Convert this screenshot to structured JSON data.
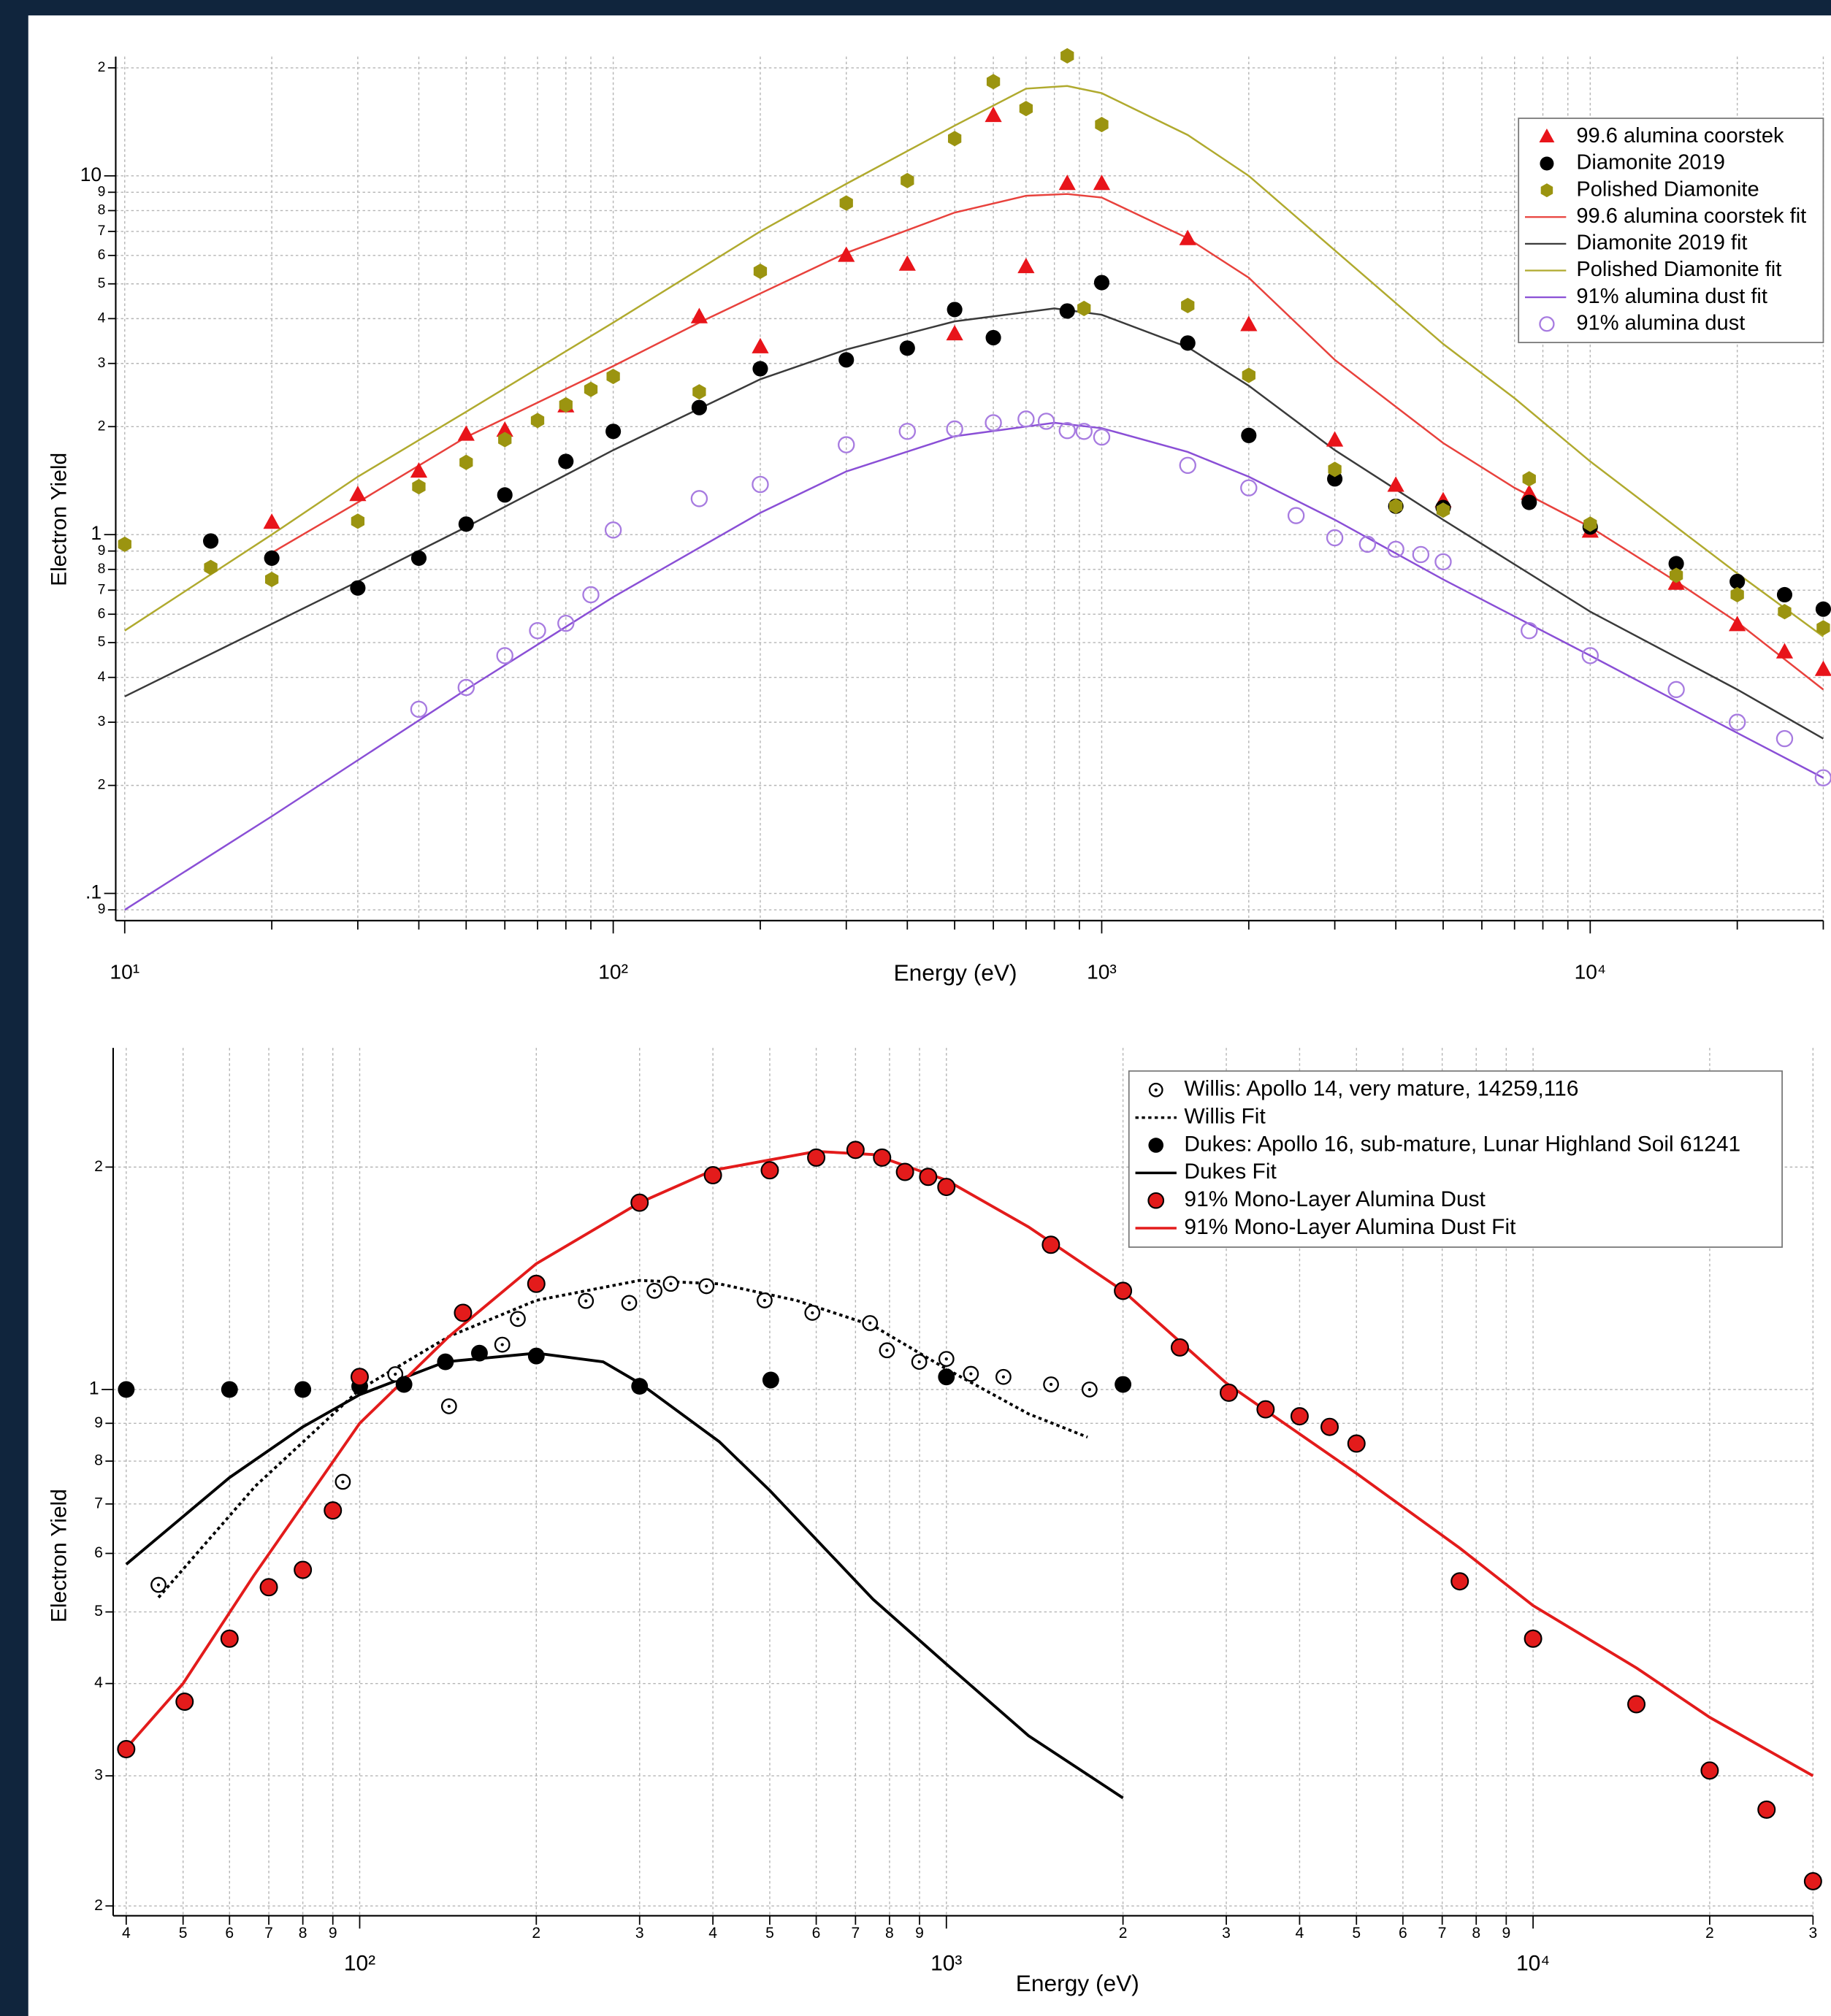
{
  "chart_data": [
    {
      "type": "scatter",
      "log_x": true,
      "log_y": true,
      "grid": true,
      "legend": "upper right",
      "xlabel": "Energy (eV)",
      "ylabel": "Electron Yield",
      "xlim": [
        10,
        30000
      ],
      "ylim": [
        0.084,
        21.5
      ],
      "xticks": [
        {
          "value": 10,
          "label": "10¹"
        },
        {
          "value": 100,
          "label": "10²"
        },
        {
          "value": 1000,
          "label": "10³"
        },
        {
          "value": 10000,
          "label": "10⁴"
        }
      ],
      "xminorticks": [
        20,
        30,
        40,
        50,
        60,
        70,
        80,
        90,
        200,
        300,
        400,
        500,
        600,
        700,
        800,
        900,
        2000,
        3000,
        4000,
        5000,
        6000,
        7000,
        8000,
        9000,
        20000,
        30000
      ],
      "yticks": [
        {
          "value": 20,
          "label": "2"
        },
        10,
        9,
        8,
        7,
        6,
        5,
        4,
        3,
        2,
        1,
        {
          "value": 0.9,
          "label": "9"
        },
        {
          "value": 0.8,
          "label": "8"
        },
        {
          "value": 0.7,
          "label": "7"
        },
        {
          "value": 0.6,
          "label": "6"
        },
        {
          "value": 0.5,
          "label": "5"
        },
        {
          "value": 0.4,
          "label": "4"
        },
        {
          "value": 0.3,
          "label": "3"
        },
        {
          "value": 0.2,
          "label": "2"
        },
        {
          "value": 0.1,
          "label": ".1"
        },
        {
          "value": 0.09,
          "label": "9"
        }
      ],
      "series": [
        {
          "name": "99.6 alumina coorstek",
          "mode": "markers",
          "marker": "triangle",
          "color": "#e8141a",
          "x": [
            20,
            30,
            40,
            50,
            60,
            80,
            150,
            200,
            300,
            400,
            500,
            600,
            700,
            850,
            1000,
            1500,
            2000,
            3000,
            4000,
            5000,
            7500,
            10000,
            15000,
            20000,
            25000,
            30000
          ],
          "values": [
            1.08,
            1.29,
            1.5,
            1.9,
            1.95,
            2.28,
            4.04,
            3.33,
            5.99,
            5.66,
            3.62,
            14.7,
            5.57,
            9.5,
            9.5,
            6.67,
            3.84,
            1.83,
            1.37,
            1.24,
            1.3,
            1.02,
            0.73,
            0.56,
            0.47,
            0.42
          ]
        },
        {
          "name": "Diamonite 2019",
          "mode": "markers",
          "marker": "circle",
          "color": "#000000",
          "x": [
            15,
            20,
            30,
            40,
            50,
            60,
            80,
            100,
            150,
            200,
            300,
            400,
            500,
            600,
            850,
            1000,
            1500,
            2000,
            3000,
            4000,
            5000,
            7500,
            10000,
            15000,
            20000,
            25000,
            30000
          ],
          "values": [
            0.96,
            0.86,
            0.71,
            0.86,
            1.07,
            1.29,
            1.6,
            1.94,
            2.26,
            2.9,
            3.07,
            3.31,
            4.24,
            3.54,
            4.2,
            5.04,
            3.42,
            1.89,
            1.43,
            1.2,
            1.19,
            1.23,
            1.05,
            0.83,
            0.74,
            0.68,
            0.62
          ]
        },
        {
          "name": "Polished Diamonite",
          "mode": "markers",
          "marker": "hexagon",
          "color": "#9b9410",
          "x": [
            10,
            15,
            20,
            30,
            40,
            50,
            60,
            70,
            80,
            90,
            100,
            150,
            200,
            300,
            400,
            500,
            600,
            700,
            850,
            920,
            1000,
            1500,
            2000,
            3000,
            4000,
            5000,
            7500,
            10000,
            15000,
            20000,
            25000,
            30000
          ],
          "values": [
            0.94,
            0.81,
            0.75,
            1.09,
            1.36,
            1.59,
            1.84,
            2.08,
            2.3,
            2.54,
            2.76,
            2.5,
            5.42,
            8.4,
            9.7,
            12.7,
            18.3,
            15.4,
            21.6,
            4.27,
            13.9,
            4.35,
            2.78,
            1.52,
            1.2,
            1.17,
            1.43,
            1.07,
            0.77,
            0.68,
            0.61,
            0.55
          ]
        },
        {
          "name": "99.6 alumina coorstek fit",
          "mode": "lines",
          "linestyle": "solid",
          "color": "#e8413c",
          "x": [
            20,
            30,
            50,
            100,
            150,
            200,
            300,
            500,
            700,
            850,
            1000,
            1500,
            2000,
            3000,
            5000,
            7000,
            10000,
            15000,
            20000,
            30000
          ],
          "values": [
            0.89,
            1.23,
            1.87,
            2.95,
            3.9,
            4.7,
            6.1,
            7.9,
            8.8,
            8.9,
            8.7,
            6.7,
            5.2,
            3.07,
            1.8,
            1.35,
            1.05,
            0.74,
            0.57,
            0.37
          ]
        },
        {
          "name": "Diamonite 2019 fit",
          "mode": "lines",
          "linestyle": "solid",
          "color": "#3a3a3a",
          "x": [
            10,
            30,
            50,
            100,
            200,
            300,
            500,
            800,
            1000,
            1500,
            2000,
            3000,
            5000,
            10000,
            20000,
            30000
          ],
          "values": [
            0.354,
            0.74,
            1.05,
            1.72,
            2.71,
            3.28,
            3.93,
            4.27,
            4.1,
            3.33,
            2.6,
            1.72,
            1.1,
            0.61,
            0.37,
            0.27
          ]
        },
        {
          "name": "Polished Diamonite fit",
          "mode": "lines",
          "linestyle": "solid",
          "color": "#b0aa2e",
          "x": [
            10,
            20,
            30,
            50,
            100,
            200,
            300,
            500,
            700,
            850,
            1000,
            1500,
            2000,
            3000,
            5000,
            7000,
            10000,
            15000,
            20000,
            30000
          ],
          "values": [
            0.54,
            1.0,
            1.45,
            2.2,
            3.9,
            7.0,
            9.5,
            13.8,
            17.5,
            17.8,
            17,
            13,
            10,
            6.2,
            3.4,
            2.4,
            1.6,
            1.05,
            0.78,
            0.52
          ]
        },
        {
          "name": "91% alumina dust fit",
          "mode": "lines",
          "linestyle": "solid",
          "color": "#8a4fd6",
          "x": [
            10,
            20,
            50,
            100,
            200,
            300,
            500,
            800,
            1000,
            1500,
            2000,
            3000,
            5000,
            10000,
            20000,
            30000
          ],
          "values": [
            0.09,
            0.164,
            0.37,
            0.67,
            1.15,
            1.5,
            1.88,
            2.05,
            1.98,
            1.7,
            1.45,
            1.1,
            0.75,
            0.46,
            0.28,
            0.21
          ]
        },
        {
          "name": "91% alumina dust",
          "mode": "markers",
          "marker": "open-circle",
          "color": "#a77be0",
          "x": [
            40,
            50,
            60,
            70,
            80,
            90,
            100,
            150,
            200,
            300,
            400,
            500,
            600,
            700,
            770,
            850,
            920,
            1000,
            1500,
            2000,
            2500,
            3000,
            3500,
            4000,
            4500,
            5000,
            7500,
            10000,
            15000,
            20000,
            25000,
            30000
          ],
          "values": [
            0.326,
            0.375,
            0.46,
            0.54,
            0.566,
            0.68,
            1.03,
            1.26,
            1.38,
            1.78,
            1.94,
            1.97,
            2.05,
            2.1,
            2.07,
            1.95,
            1.94,
            1.87,
            1.56,
            1.35,
            1.13,
            0.98,
            0.94,
            0.91,
            0.88,
            0.84,
            0.54,
            0.46,
            0.37,
            0.3,
            0.27,
            0.21
          ]
        }
      ]
    },
    {
      "type": "scatter",
      "log_x": true,
      "log_y": true,
      "grid": true,
      "legend": "upper right",
      "xlabel": "Energy (eV)",
      "ylabel": "Electron Yield",
      "xlim": [
        38,
        30000
      ],
      "ylim": [
        0.194,
        2.9
      ],
      "xticks": [
        {
          "value": 40,
          "label": "4"
        },
        {
          "value": 50,
          "label": "5"
        },
        {
          "value": 60,
          "label": "6"
        },
        {
          "value": 70,
          "label": "7"
        },
        {
          "value": 80,
          "label": "8"
        },
        {
          "value": 90,
          "label": "9"
        },
        {
          "value": 100,
          "label": "10²"
        },
        {
          "value": 200,
          "label": "2"
        },
        {
          "value": 300,
          "label": "3"
        },
        {
          "value": 400,
          "label": "4"
        },
        {
          "value": 500,
          "label": "5"
        },
        {
          "value": 600,
          "label": "6"
        },
        {
          "value": 700,
          "label": "7"
        },
        {
          "value": 800,
          "label": "8"
        },
        {
          "value": 900,
          "label": "9"
        },
        {
          "value": 1000,
          "label": "10³"
        },
        {
          "value": 2000,
          "label": "2"
        },
        {
          "value": 3000,
          "label": "3"
        },
        {
          "value": 4000,
          "label": "4"
        },
        {
          "value": 5000,
          "label": "5"
        },
        {
          "value": 6000,
          "label": "6"
        },
        {
          "value": 7000,
          "label": "7"
        },
        {
          "value": 8000,
          "label": "8"
        },
        {
          "value": 9000,
          "label": "9"
        },
        {
          "value": 10000,
          "label": "10⁴"
        },
        {
          "value": 20000,
          "label": "2"
        },
        {
          "value": 30000,
          "label": "3"
        }
      ],
      "yticks": [
        2,
        1,
        {
          "value": 0.9,
          "label": "9"
        },
        {
          "value": 0.8,
          "label": "8"
        },
        {
          "value": 0.7,
          "label": "7"
        },
        {
          "value": 0.6,
          "label": "6"
        },
        {
          "value": 0.5,
          "label": "5"
        },
        {
          "value": 0.4,
          "label": "4"
        },
        {
          "value": 0.3,
          "label": "3"
        },
        {
          "value": 0.2,
          "label": "2"
        }
      ],
      "series": [
        {
          "name": "Willis: Apollo 14, very mature, 14259,116",
          "mode": "markers",
          "marker": "dotted-circle",
          "color": "#000000",
          "x": [
            45.4,
            93.6,
            115,
            142,
            175,
            186,
            243,
            288,
            318,
            339,
            390,
            490,
            591,
            741,
            792,
            899,
            1000,
            1101,
            1251,
            1508,
            1754
          ],
          "values": [
            0.544,
            0.75,
            1.049,
            0.949,
            1.15,
            1.246,
            1.318,
            1.31,
            1.36,
            1.39,
            1.38,
            1.32,
            1.27,
            1.23,
            1.13,
            1.09,
            1.1,
            1.05,
            1.04,
            1.016,
            1.0
          ]
        },
        {
          "name": "Willis Fit",
          "mode": "lines",
          "linestyle": "dotted",
          "color": "#000000",
          "x": [
            45.4,
            66.4,
            100,
            142,
            200,
            300,
            410,
            555,
            750,
            1000,
            1380,
            1740
          ],
          "values": [
            0.523,
            0.74,
            1.0,
            1.18,
            1.32,
            1.405,
            1.39,
            1.32,
            1.22,
            1.066,
            0.927,
            0.862
          ]
        },
        {
          "name": "Dukes: Apollo 16, sub-mature, Lunar Highland Soil 61241",
          "mode": "markers",
          "marker": "circle",
          "color": "#000000",
          "x": [
            40,
            60,
            80,
            100,
            119,
            140,
            160,
            200,
            300,
            502,
            1000,
            2000
          ],
          "values": [
            1.0,
            1.0,
            1.0,
            1.01,
            1.016,
            1.09,
            1.12,
            1.11,
            1.01,
            1.03,
            1.04,
            1.016
          ]
        },
        {
          "name": "Dukes Fit",
          "mode": "lines",
          "linestyle": "solid",
          "color": "#000000",
          "x": [
            40,
            60,
            80,
            100,
            140,
            200,
            260,
            300,
            410,
            500,
            750,
            1000,
            1380,
            2000
          ],
          "values": [
            0.58,
            0.76,
            0.89,
            0.984,
            1.09,
            1.12,
            1.09,
            1.02,
            0.85,
            0.73,
            0.52,
            0.425,
            0.34,
            0.28
          ]
        },
        {
          "name": "91% Mono-Layer Alumina Dust",
          "mode": "markers",
          "marker": "circle",
          "color": "#e31b1b",
          "edgecolor": "#000000",
          "x": [
            40,
            50.3,
            60,
            70,
            80,
            90,
            100,
            150,
            200,
            300,
            400,
            500,
            600,
            700,
            777,
            850,
            931,
            1000,
            1507,
            2000,
            2500,
            3030,
            3500,
            4000,
            4500,
            5000,
            7500,
            10000,
            15000,
            20000,
            25000,
            30000
          ],
          "values": [
            0.326,
            0.378,
            0.46,
            0.54,
            0.57,
            0.686,
            1.04,
            1.27,
            1.39,
            1.79,
            1.95,
            1.98,
            2.06,
            2.11,
            2.06,
            1.97,
            1.94,
            1.88,
            1.57,
            1.36,
            1.14,
            0.99,
            0.94,
            0.92,
            0.89,
            0.845,
            0.55,
            0.46,
            0.375,
            0.305,
            0.27,
            0.216
          ]
        },
        {
          "name": "91% Mono-Layer Alumina Dust Fit",
          "mode": "lines",
          "linestyle": "solid",
          "color": "#e31b1b",
          "x": [
            40,
            50,
            66,
            100,
            142,
            200,
            300,
            400,
            600,
            750,
            1000,
            1380,
            2000,
            3000,
            5000,
            7500,
            10000,
            15000,
            20000,
            30000
          ],
          "values": [
            0.327,
            0.4,
            0.56,
            0.9,
            1.18,
            1.48,
            1.79,
            1.98,
            2.1,
            2.08,
            1.92,
            1.66,
            1.36,
            1.02,
            0.77,
            0.61,
            0.51,
            0.42,
            0.36,
            0.3
          ]
        }
      ]
    }
  ]
}
